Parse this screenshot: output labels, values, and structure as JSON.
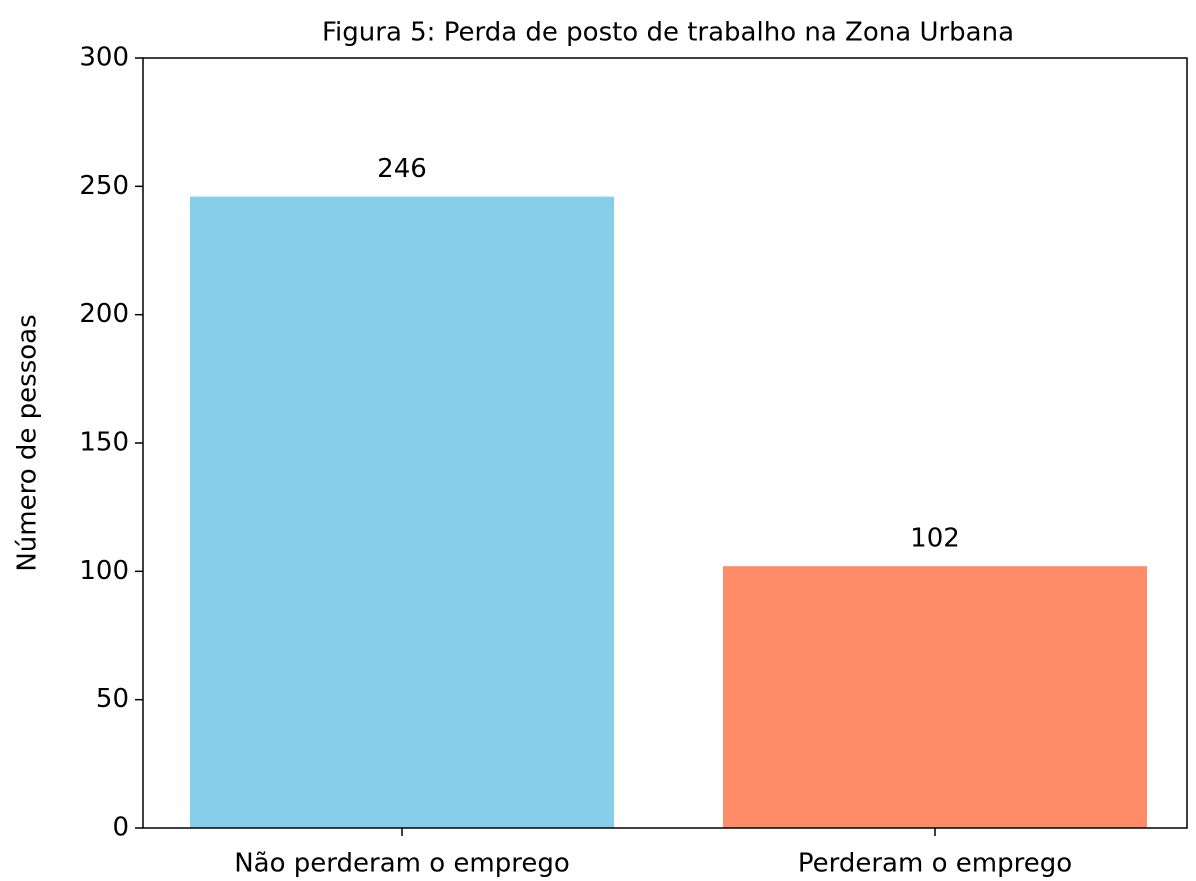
{
  "chart_data": {
    "type": "bar",
    "title": "Figura 5: Perda de posto de trabalho na Zona Urbana",
    "ylabel": "Número de pessoas",
    "categories": [
      "Não perderam o emprego",
      "Perderam o emprego"
    ],
    "values": [
      246,
      102
    ],
    "colors": [
      "#87ceeb",
      "#ff8c69"
    ],
    "ylim": [
      0,
      300
    ],
    "yticks": [
      0,
      50,
      100,
      150,
      200,
      250,
      300
    ]
  }
}
